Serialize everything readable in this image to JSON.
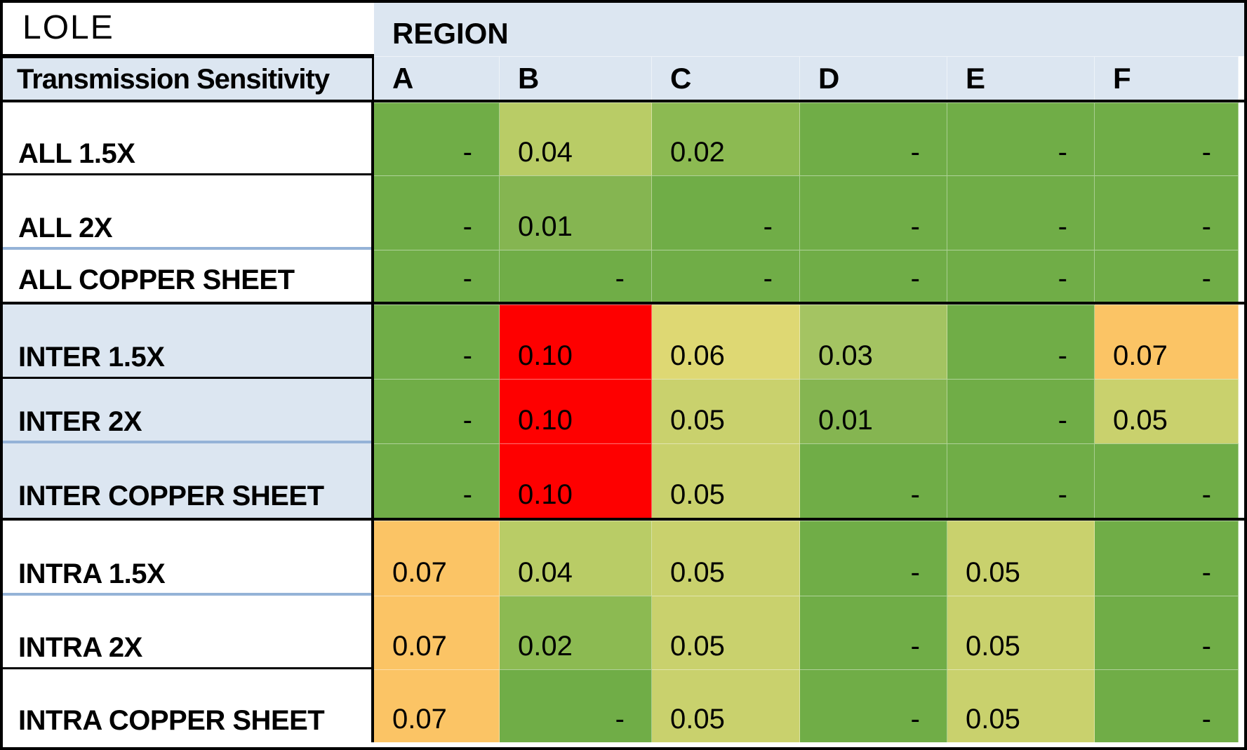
{
  "header": {
    "title_label": "LOLE",
    "region_label": "REGION",
    "row_dimension_label": "Transmission Sensitivity",
    "columns": [
      "A",
      "B",
      "C",
      "D",
      "E",
      "F"
    ]
  },
  "colors": {
    "header_bg": "#dce6f1",
    "label_highlight_bg": "#dce6f1",
    "divider_blue": "#95b3d7",
    "border_black": "#000000"
  },
  "chart_data": {
    "type": "heatmap",
    "title": "LOLE",
    "x_title": "REGION",
    "y_title": "Transmission Sensitivity",
    "columns": [
      "A",
      "B",
      "C",
      "D",
      "E",
      "F"
    ],
    "rows": [
      {
        "label": "ALL 1.5X",
        "group": "ALL",
        "values": [
          null,
          0.04,
          0.02,
          null,
          null,
          null
        ],
        "display": [
          "-",
          "0.04",
          "0.02",
          "-",
          "-",
          "-"
        ]
      },
      {
        "label": "ALL 2X",
        "group": "ALL",
        "values": [
          null,
          0.01,
          null,
          null,
          null,
          null
        ],
        "display": [
          "-",
          "0.01",
          "-",
          "-",
          "-",
          "-"
        ]
      },
      {
        "label": "ALL COPPER SHEET",
        "group": "ALL",
        "values": [
          null,
          null,
          null,
          null,
          null,
          null
        ],
        "display": [
          "-",
          "-",
          "-",
          "-",
          "-",
          "-"
        ]
      },
      {
        "label": "INTER 1.5X",
        "group": "INTER",
        "values": [
          null,
          0.1,
          0.06,
          0.03,
          null,
          0.07
        ],
        "display": [
          "-",
          "0.10",
          "0.06",
          "0.03",
          "-",
          "0.07"
        ]
      },
      {
        "label": "INTER 2X",
        "group": "INTER",
        "values": [
          null,
          0.1,
          0.05,
          0.01,
          null,
          0.05
        ],
        "display": [
          "-",
          "0.10",
          "0.05",
          "0.01",
          "-",
          "0.05"
        ]
      },
      {
        "label": "INTER COPPER SHEET",
        "group": "INTER",
        "values": [
          null,
          0.1,
          0.05,
          null,
          null,
          null
        ],
        "display": [
          "-",
          "0.10",
          "0.05",
          "-",
          "-",
          "-"
        ]
      },
      {
        "label": "INTRA 1.5X",
        "group": "INTRA",
        "values": [
          0.07,
          0.04,
          0.05,
          null,
          0.05,
          null
        ],
        "display": [
          "0.07",
          "0.04",
          "0.05",
          "-",
          "0.05",
          "-"
        ]
      },
      {
        "label": "INTRA 2X",
        "group": "INTRA",
        "values": [
          0.07,
          0.02,
          0.05,
          null,
          0.05,
          null
        ],
        "display": [
          "0.07",
          "0.02",
          "0.05",
          "-",
          "0.05",
          "-"
        ]
      },
      {
        "label": "INTRA COPPER SHEET",
        "group": "INTRA",
        "values": [
          0.07,
          null,
          0.05,
          null,
          0.05,
          null
        ],
        "display": [
          "0.07",
          "-",
          "0.05",
          "-",
          "0.05",
          "-"
        ]
      }
    ],
    "value_colors": {
      "-": "#70ad47",
      "0.01": "#85b551",
      "0.02": "#8cba52",
      "0.03": "#a4c462",
      "0.04": "#b9cc66",
      "0.05": "#c9d16d",
      "0.06": "#ded873",
      "0.07": "#fbc465",
      "0.10": "#fe0000"
    },
    "color_scale": {
      "min": {
        "value": 0.0,
        "color": "#70ad47"
      },
      "mid": {
        "value": 0.05,
        "color": "#c9d16d"
      },
      "max": {
        "value": 0.1,
        "color": "#fe0000"
      },
      "null_display": "-"
    },
    "legend": "none",
    "grid": "faint white gridlines between cells"
  }
}
